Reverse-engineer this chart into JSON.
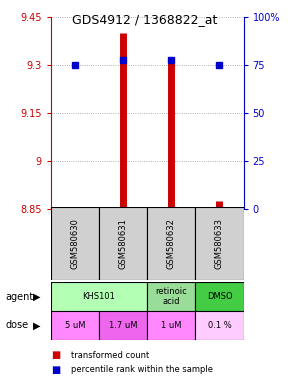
{
  "title": "GDS4912 / 1368822_at",
  "samples": [
    "GSM580630",
    "GSM580631",
    "GSM580632",
    "GSM580633"
  ],
  "red_values": [
    8.856,
    9.4,
    9.325,
    8.875
  ],
  "blue_values": [
    9.3,
    9.315,
    9.315,
    9.3
  ],
  "ylim_left": [
    8.85,
    9.45
  ],
  "ylim_right": [
    0,
    100
  ],
  "yticks_left": [
    8.85,
    9.0,
    9.15,
    9.3,
    9.45
  ],
  "yticks_right": [
    0,
    25,
    50,
    75,
    100
  ],
  "ytick_labels_left": [
    "8.85",
    "9",
    "9.15",
    "9.3",
    "9.45"
  ],
  "ytick_labels_right": [
    "0",
    "25",
    "50",
    "75",
    "100%"
  ],
  "agent_groups": [
    [
      0,
      1,
      "KHS101",
      "#b3ffb3"
    ],
    [
      2,
      2,
      "retinoic\nacid",
      "#99dd99"
    ],
    [
      3,
      3,
      "DMSO",
      "#44cc44"
    ]
  ],
  "dose_labels": [
    "5 uM",
    "1.7 uM",
    "1 uM",
    "0.1 %"
  ],
  "dose_colors": [
    "#ff88ff",
    "#ee77ee",
    "#ff88ff",
    "#ffccff"
  ],
  "sample_bg_color": "#d0d0d0",
  "grid_color": "#999999",
  "red_color": "#cc0000",
  "blue_color": "#0000cc",
  "bar_bottom": 8.85,
  "bar_linewidth": 5
}
